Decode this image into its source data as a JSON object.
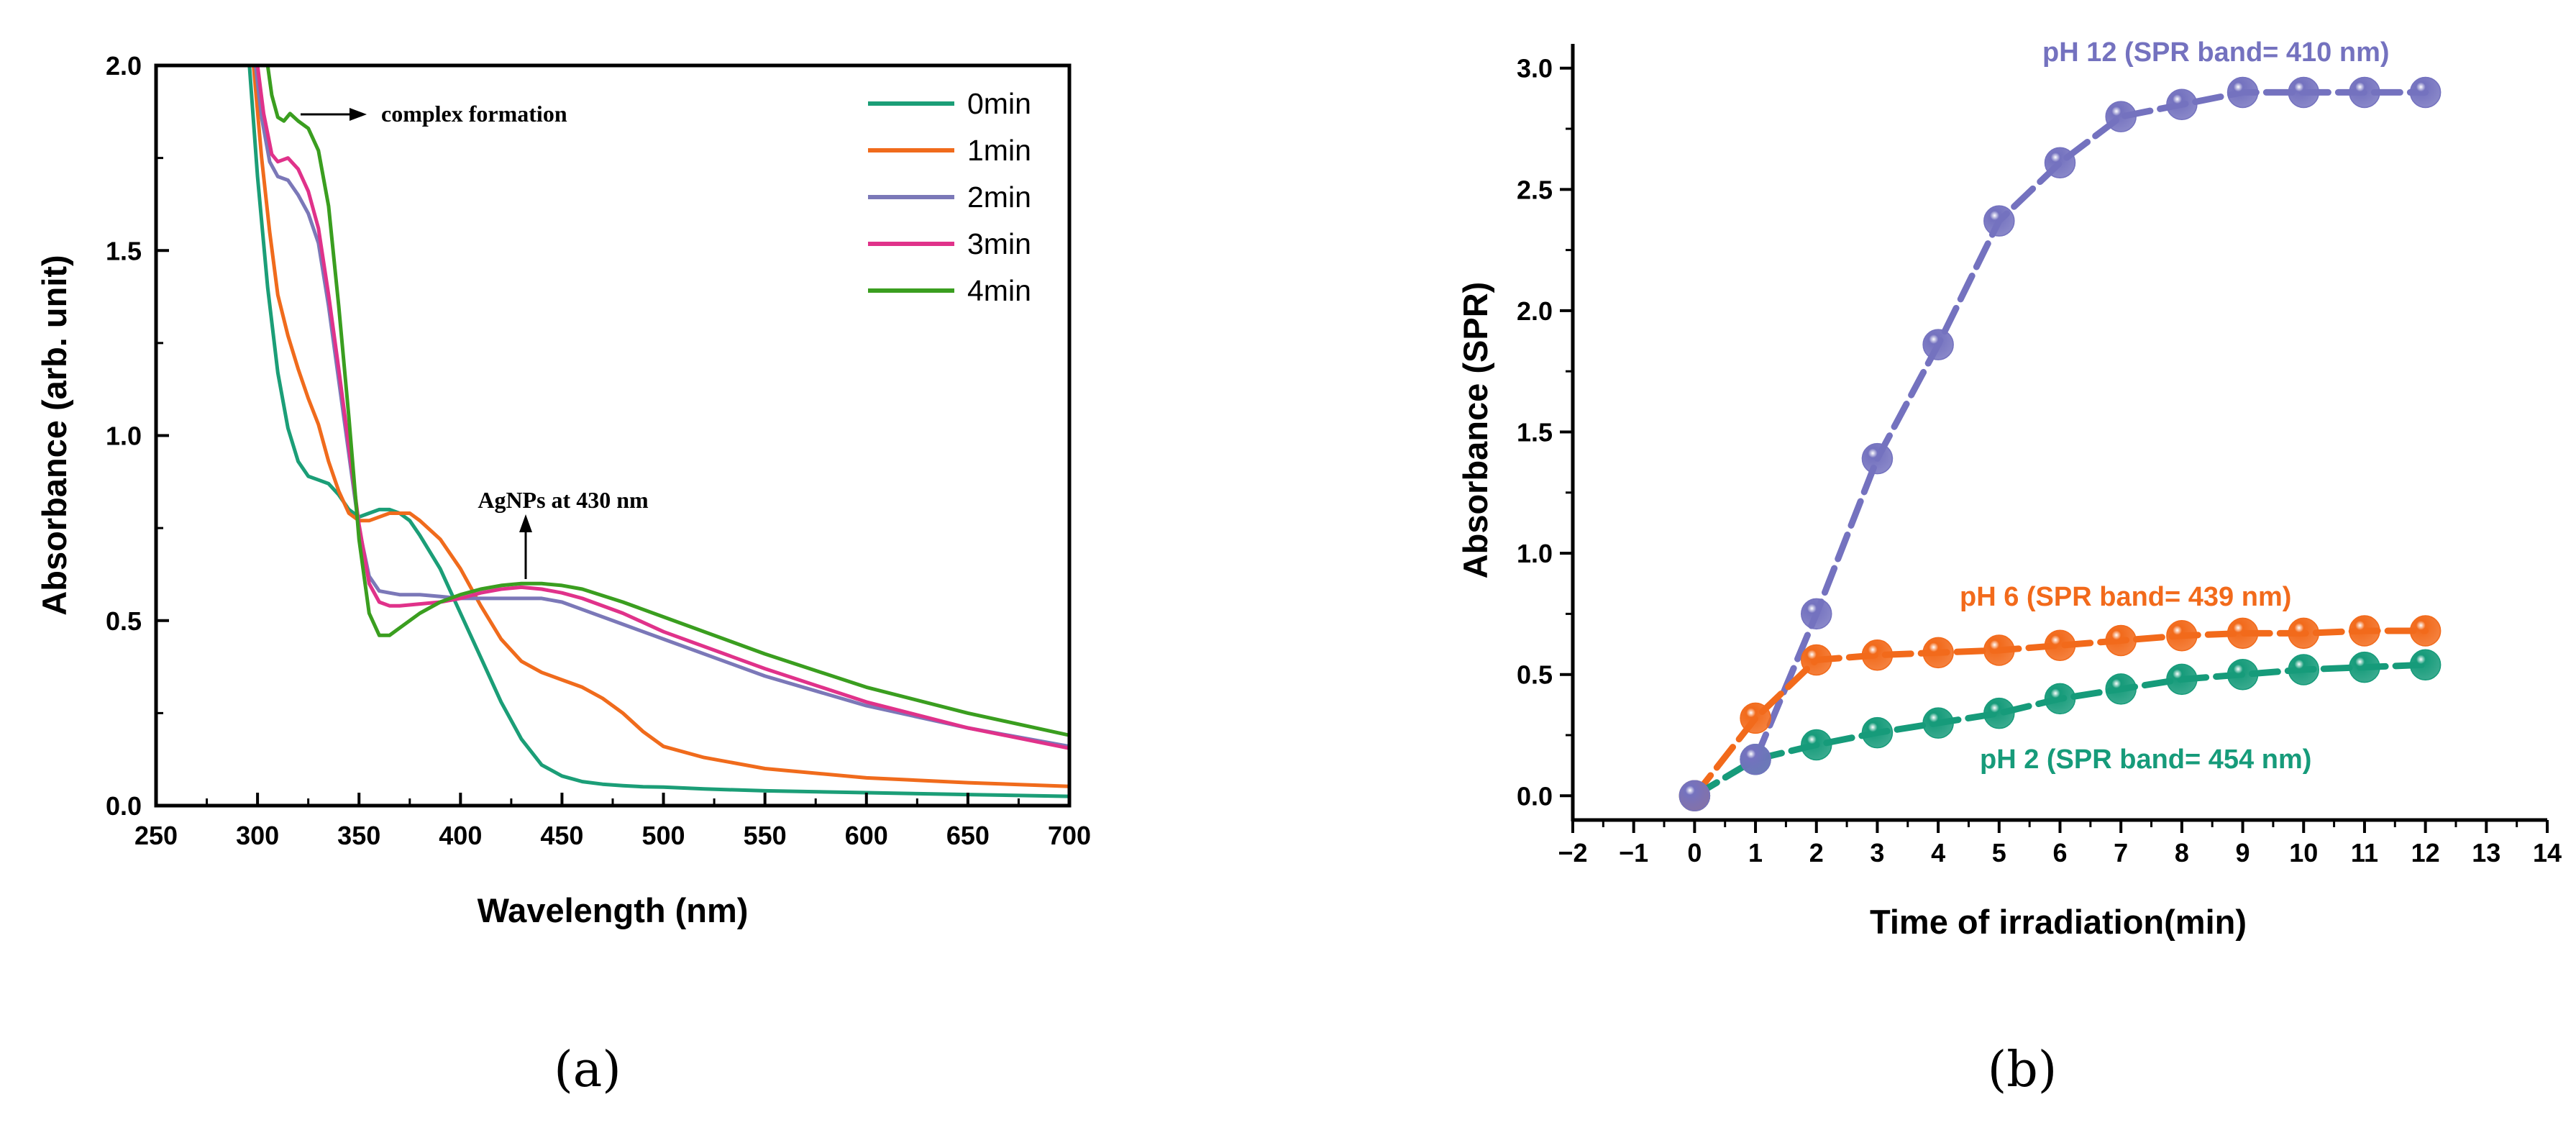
{
  "chart_data": [
    {
      "type": "line",
      "panel": "(a)",
      "xlabel": "Wavelength (nm)",
      "ylabel": "Absorbance (arb. unit)",
      "xlim": [
        250,
        700
      ],
      "ylim": [
        0.0,
        2.0
      ],
      "xticks": [
        "250",
        "300",
        "350",
        "400",
        "450",
        "500",
        "550",
        "600",
        "650",
        "700"
      ],
      "yticks": [
        "0.0",
        "0.5",
        "1.0",
        "1.5",
        "2.0"
      ],
      "legend_position": "top-right",
      "annotations": [
        {
          "text": "complex formation",
          "x": 316,
          "y": 1.87
        },
        {
          "text": "AgNPs at 430 nm",
          "x": 430,
          "y": 0.6
        }
      ],
      "series": [
        {
          "name": "0min",
          "color": "#1b9e77",
          "x": [
            296,
            300,
            305,
            310,
            315,
            320,
            325,
            330,
            335,
            340,
            345,
            350,
            355,
            360,
            365,
            370,
            375,
            380,
            390,
            400,
            410,
            420,
            430,
            440,
            450,
            460,
            470,
            480,
            490,
            500,
            520,
            550,
            600,
            650,
            700
          ],
          "y": [
            2.0,
            1.7,
            1.4,
            1.17,
            1.02,
            0.93,
            0.89,
            0.88,
            0.87,
            0.84,
            0.8,
            0.78,
            0.79,
            0.8,
            0.8,
            0.79,
            0.77,
            0.73,
            0.64,
            0.52,
            0.4,
            0.28,
            0.18,
            0.11,
            0.08,
            0.065,
            0.058,
            0.054,
            0.051,
            0.05,
            0.045,
            0.04,
            0.035,
            0.03,
            0.025
          ]
        },
        {
          "name": "1min",
          "color": "#f06b1c",
          "x": [
            298,
            302,
            306,
            310,
            315,
            320,
            325,
            330,
            335,
            340,
            345,
            350,
            355,
            360,
            365,
            370,
            375,
            380,
            390,
            400,
            410,
            420,
            430,
            440,
            450,
            460,
            470,
            480,
            490,
            500,
            520,
            550,
            600,
            650,
            700
          ],
          "y": [
            2.0,
            1.75,
            1.55,
            1.38,
            1.27,
            1.18,
            1.1,
            1.03,
            0.93,
            0.85,
            0.79,
            0.77,
            0.77,
            0.78,
            0.79,
            0.79,
            0.79,
            0.77,
            0.72,
            0.64,
            0.54,
            0.45,
            0.39,
            0.36,
            0.34,
            0.32,
            0.29,
            0.25,
            0.2,
            0.16,
            0.13,
            0.1,
            0.075,
            0.062,
            0.052
          ]
        },
        {
          "name": "2min",
          "color": "#7b78b8",
          "x": [
            299,
            302,
            306,
            310,
            315,
            320,
            325,
            330,
            335,
            340,
            345,
            350,
            355,
            360,
            365,
            370,
            380,
            390,
            400,
            410,
            420,
            430,
            440,
            450,
            460,
            480,
            500,
            550,
            600,
            650,
            700
          ],
          "y": [
            2.0,
            1.86,
            1.74,
            1.7,
            1.69,
            1.65,
            1.6,
            1.52,
            1.35,
            1.15,
            0.95,
            0.75,
            0.62,
            0.58,
            0.575,
            0.57,
            0.57,
            0.565,
            0.56,
            0.56,
            0.56,
            0.56,
            0.56,
            0.55,
            0.53,
            0.49,
            0.45,
            0.35,
            0.27,
            0.21,
            0.16
          ]
        },
        {
          "name": "3min",
          "color": "#e0328a",
          "x": [
            300,
            303,
            307,
            310,
            315,
            320,
            325,
            330,
            335,
            340,
            345,
            350,
            355,
            360,
            365,
            370,
            380,
            390,
            400,
            410,
            420,
            430,
            440,
            450,
            460,
            480,
            500,
            550,
            600,
            650,
            700
          ],
          "y": [
            2.0,
            1.87,
            1.76,
            1.74,
            1.75,
            1.72,
            1.66,
            1.56,
            1.38,
            1.18,
            0.97,
            0.76,
            0.6,
            0.55,
            0.54,
            0.54,
            0.545,
            0.55,
            0.56,
            0.575,
            0.585,
            0.59,
            0.585,
            0.575,
            0.56,
            0.52,
            0.47,
            0.37,
            0.28,
            0.21,
            0.155
          ]
        },
        {
          "name": "4min",
          "color": "#3a9e1f",
          "x": [
            305,
            307,
            310,
            313,
            316,
            320,
            325,
            330,
            335,
            340,
            345,
            350,
            355,
            360,
            365,
            370,
            380,
            390,
            400,
            410,
            420,
            430,
            440,
            450,
            460,
            480,
            500,
            550,
            600,
            650,
            700
          ],
          "y": [
            2.0,
            1.92,
            1.86,
            1.85,
            1.87,
            1.85,
            1.83,
            1.77,
            1.62,
            1.35,
            1.05,
            0.72,
            0.52,
            0.46,
            0.46,
            0.48,
            0.52,
            0.55,
            0.57,
            0.585,
            0.595,
            0.6,
            0.6,
            0.595,
            0.585,
            0.55,
            0.51,
            0.41,
            0.32,
            0.25,
            0.19
          ]
        }
      ]
    },
    {
      "type": "line",
      "panel": "(b)",
      "xlabel": "Time of irradiation(min)",
      "ylabel": "Absorbance (SPR)",
      "xlim": [
        -2,
        14
      ],
      "ylim": [
        -0.1,
        3.1
      ],
      "xticks": [
        "−2",
        "−1",
        "0",
        "1",
        "2",
        "3",
        "4",
        "5",
        "6",
        "7",
        "8",
        "9",
        "10",
        "11",
        "12",
        "13",
        "14"
      ],
      "yticks": [
        "0.0",
        "0.5",
        "1.0",
        "1.5",
        "2.0",
        "2.5",
        "3.0"
      ],
      "series": [
        {
          "name": "pH 12 (SPR band= 410 nm)",
          "color": "#7472bf",
          "x": [
            0,
            1,
            2,
            3,
            4,
            5,
            6,
            7,
            8,
            9,
            10,
            11,
            12
          ],
          "y": [
            0.0,
            0.15,
            0.75,
            1.39,
            1.86,
            2.37,
            2.61,
            2.8,
            2.85,
            2.9,
            2.9,
            2.9,
            2.9
          ]
        },
        {
          "name": "pH 6 (SPR band= 439 nm)",
          "color": "#f26a1b",
          "x": [
            0,
            1,
            2,
            3,
            4,
            5,
            6,
            7,
            8,
            9,
            10,
            11,
            12
          ],
          "y": [
            0.0,
            0.32,
            0.56,
            0.58,
            0.59,
            0.6,
            0.62,
            0.64,
            0.66,
            0.67,
            0.67,
            0.68,
            0.68
          ]
        },
        {
          "name": "pH 2 (SPR band= 454 nm)",
          "color": "#169b7a",
          "x": [
            0,
            1,
            2,
            3,
            4,
            5,
            6,
            7,
            8,
            9,
            10,
            11,
            12
          ],
          "y": [
            0.0,
            0.15,
            0.21,
            0.26,
            0.3,
            0.34,
            0.4,
            0.44,
            0.48,
            0.5,
            0.52,
            0.53,
            0.54
          ]
        }
      ]
    }
  ]
}
